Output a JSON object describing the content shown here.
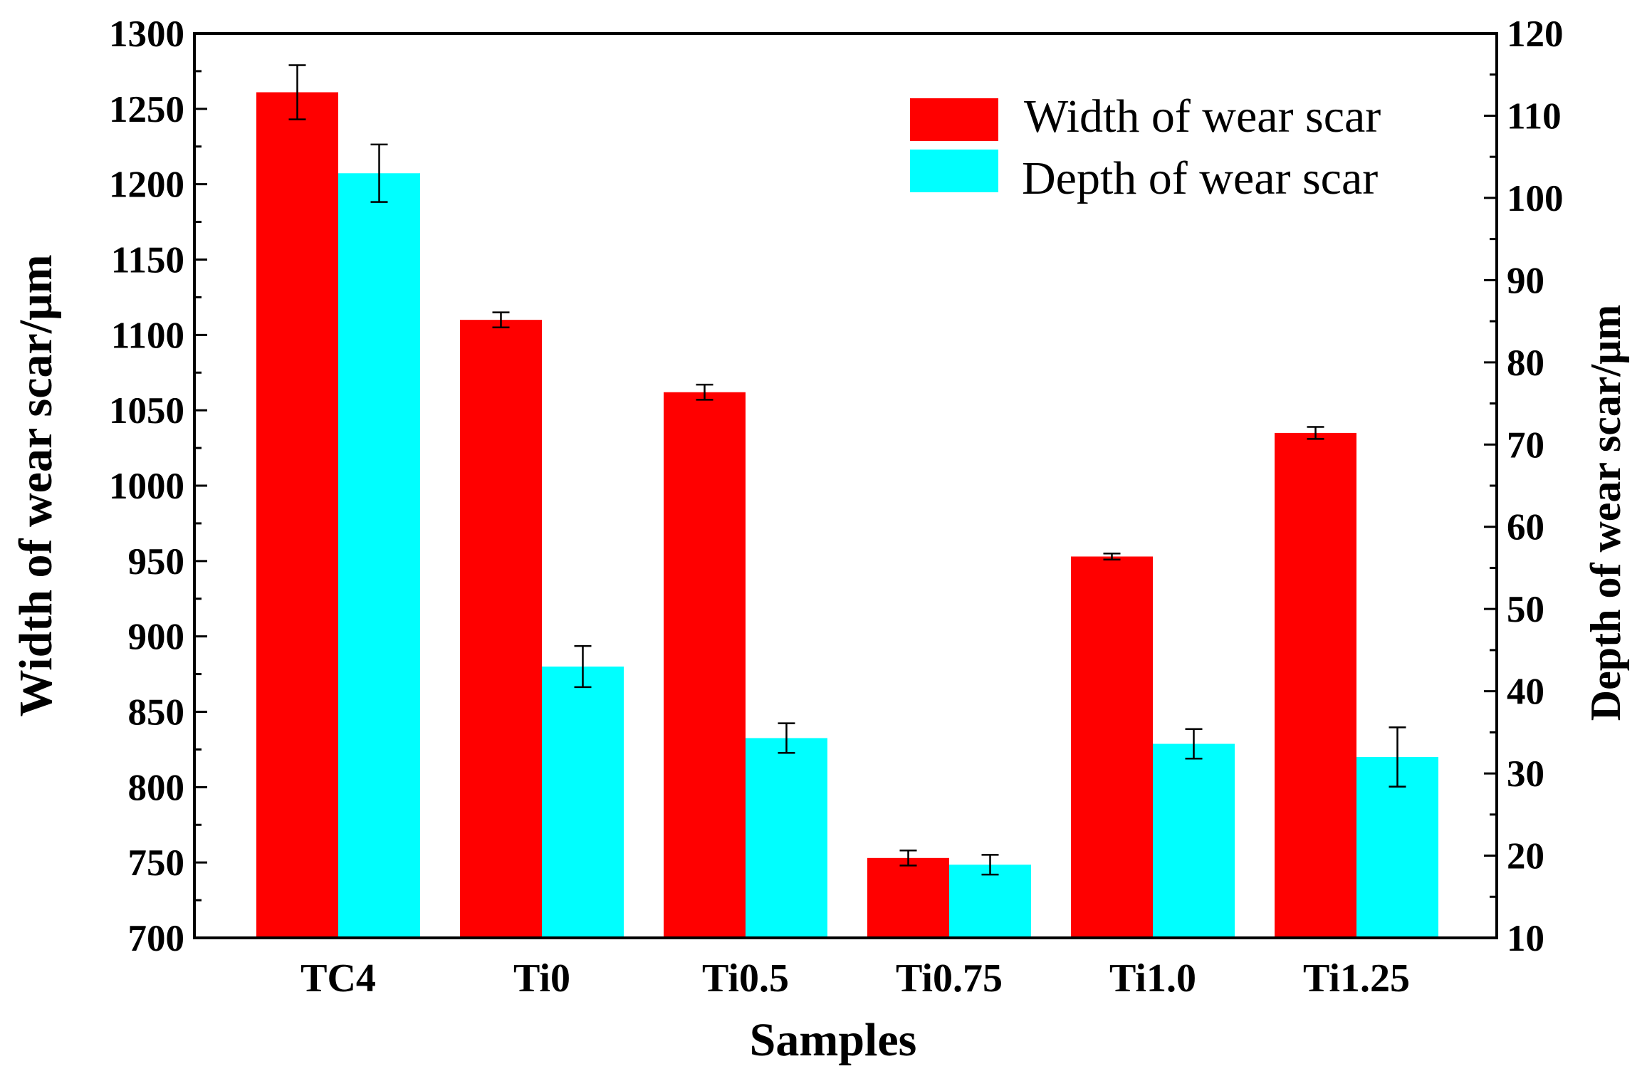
{
  "chart_data": {
    "type": "bar",
    "xlabel": "Samples",
    "ylabel": "Width of wear scar/μm",
    "ylabel_right": "Depth of wear scar/μm",
    "categories": [
      "TC4",
      "Ti0",
      "Ti0.5",
      "Ti0.75",
      "Ti1.0",
      "Ti1.25"
    ],
    "ylim": [
      700,
      1300
    ],
    "yticks": [
      700,
      750,
      800,
      850,
      900,
      950,
      1000,
      1050,
      1100,
      1150,
      1200,
      1250,
      1300
    ],
    "ylim_right": [
      10,
      120
    ],
    "yticks_right": [
      10,
      20,
      30,
      40,
      50,
      60,
      70,
      80,
      90,
      100,
      110,
      120
    ],
    "grid": false,
    "legend_position": "top-right",
    "series": [
      {
        "name": "Width of wear scar",
        "axis": "left",
        "color": "#ff0000",
        "values": [
          1261,
          1110,
          1062,
          753,
          953,
          1035
        ],
        "errors": [
          18,
          5,
          5,
          5,
          2,
          4
        ]
      },
      {
        "name": "Depth of wear scar",
        "axis": "right",
        "color": "#00ffff",
        "values": [
          103,
          43,
          34.3,
          18.9,
          33.6,
          32
        ],
        "errors": [
          3.5,
          2.5,
          1.8,
          1.2,
          1.8,
          3.6
        ]
      }
    ]
  }
}
